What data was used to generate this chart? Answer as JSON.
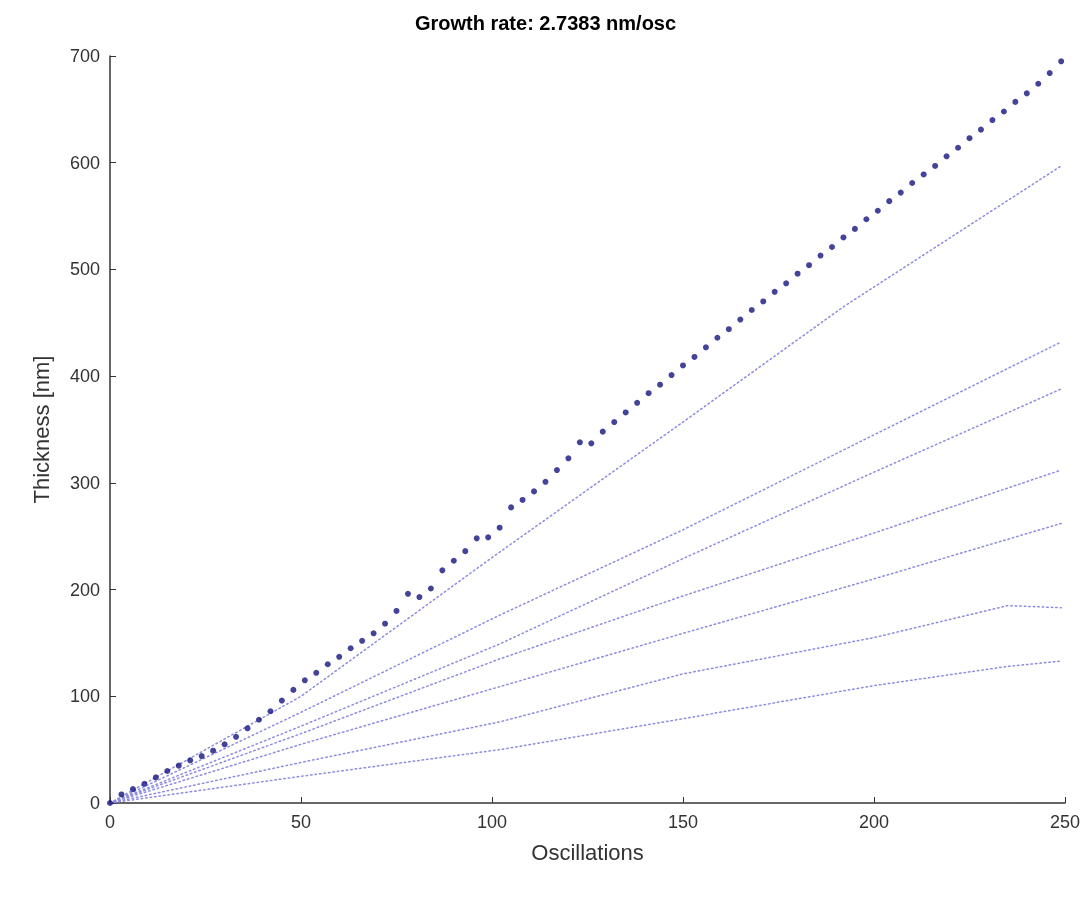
{
  "chart_data": {
    "type": "scatter",
    "title": "Growth rate: 2.7383 nm/osc",
    "xlabel": "Oscillations",
    "ylabel": "Thickness [nm]",
    "xlim": [
      0,
      250
    ],
    "xticks": [
      0,
      50,
      100,
      150,
      200,
      250
    ],
    "ylim": [
      0,
      700
    ],
    "yticks": [
      0,
      100,
      200,
      300,
      400,
      500,
      600,
      700
    ],
    "grid": false,
    "series": [
      {
        "type": "line",
        "color": "#8c8ce0",
        "line_style": "dotted",
        "marker": "none",
        "x": [
          0,
          50,
          100,
          150,
          192,
          249
        ],
        "values": [
          0,
          100,
          230,
          357,
          465,
          597
        ]
      },
      {
        "type": "line",
        "color": "#8c8ce0",
        "line_style": "dotted",
        "marker": "none",
        "x": [
          0,
          50,
          102,
          150,
          200,
          249
        ],
        "values": [
          0,
          85,
          176,
          256,
          345,
          432
        ]
      },
      {
        "type": "line",
        "color": "#8c8ce0",
        "line_style": "dotted",
        "marker": "none",
        "x": [
          0,
          50,
          102,
          150,
          200,
          249
        ],
        "values": [
          0,
          72,
          149,
          229,
          310,
          388
        ]
      },
      {
        "type": "line",
        "color": "#8c8ce0",
        "line_style": "dotted",
        "marker": "none",
        "x": [
          0,
          50,
          102,
          150,
          200,
          249
        ],
        "values": [
          0,
          65,
          135,
          194,
          253,
          312
        ]
      },
      {
        "type": "line",
        "color": "#8c8ce0",
        "line_style": "dotted",
        "marker": "none",
        "x": [
          0,
          50,
          102,
          150,
          200,
          249
        ],
        "values": [
          0,
          55,
          109,
          159,
          210,
          262
        ]
      },
      {
        "type": "line",
        "color": "#8c8ce0",
        "line_style": "dotted",
        "marker": "none",
        "x": [
          0,
          50,
          102,
          150,
          200,
          235,
          249
        ],
        "values": [
          0,
          38,
          76,
          121,
          155,
          185,
          183
        ]
      },
      {
        "type": "line",
        "color": "#8c8ce0",
        "line_style": "dotted",
        "marker": "none",
        "x": [
          0,
          50,
          102,
          150,
          200,
          235,
          249
        ],
        "values": [
          0,
          25,
          50,
          79,
          110,
          128,
          133
        ]
      },
      {
        "color": "#14147f",
        "marker": "circle",
        "x": [
          0,
          3,
          6,
          9,
          12,
          15,
          18,
          21,
          24,
          27,
          30,
          33,
          36,
          39,
          42,
          45,
          48,
          51,
          54,
          57,
          60,
          63,
          66,
          69,
          72,
          75,
          78,
          81,
          84,
          87,
          90,
          93,
          96,
          99,
          102,
          105,
          108,
          111,
          114,
          117,
          120,
          123,
          126,
          129,
          132,
          135,
          138,
          141,
          144,
          147,
          150,
          153,
          156,
          159,
          162,
          165,
          168,
          171,
          174,
          177,
          180,
          183,
          186,
          189,
          192,
          195,
          198,
          201,
          204,
          207,
          210,
          213,
          216,
          219,
          222,
          225,
          228,
          231,
          234,
          237,
          240,
          243,
          246,
          249
        ],
        "values": [
          0,
          8,
          13,
          18,
          24,
          30,
          35,
          40,
          44,
          49,
          55,
          62,
          70,
          78,
          86,
          96,
          106,
          115,
          122,
          130,
          137,
          145,
          152,
          159,
          168,
          180,
          196,
          193,
          201,
          218,
          227,
          236,
          248,
          249,
          258,
          277,
          284,
          292,
          301,
          312,
          323,
          338,
          337,
          348,
          357,
          366,
          375,
          384,
          392,
          401,
          410,
          418,
          427,
          436,
          444,
          453,
          462,
          470,
          479,
          487,
          496,
          504,
          513,
          521,
          530,
          538,
          547,
          555,
          564,
          572,
          581,
          589,
          597,
          606,
          614,
          623,
          631,
          640,
          648,
          657,
          665,
          674,
          684,
          695
        ]
      }
    ]
  }
}
